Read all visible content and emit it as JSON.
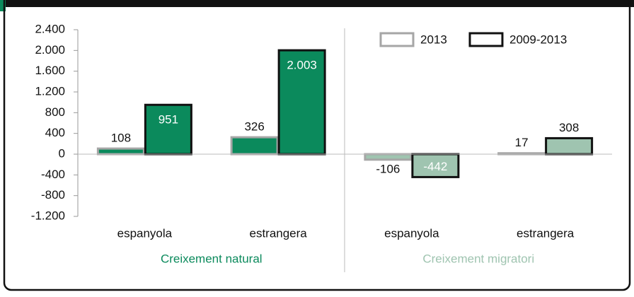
{
  "chart_data": {
    "type": "bar",
    "categories": [
      "espanyola",
      "estrangera",
      "espanyola",
      "estrangera"
    ],
    "groups": [
      {
        "label": "Creixement natural",
        "color": "#0b8a5c"
      },
      {
        "label": "Creixement migratori",
        "color": "#9fc4b0"
      }
    ],
    "series": [
      {
        "name": "2013",
        "color": "#a6a6a6",
        "values": [
          108,
          326,
          -106,
          17
        ]
      },
      {
        "name": "2009-2013",
        "color": "#111111",
        "values": [
          951,
          2003,
          -442,
          308
        ],
        "value_labels": [
          "951",
          "2.003",
          "-442",
          "308"
        ]
      }
    ],
    "ylim": [
      -1200,
      2400
    ],
    "yticks": [
      {
        "value": -1200,
        "label": "-1.200"
      },
      -800,
      -400,
      0,
      400,
      800,
      {
        "value": 1200,
        "label": "1.200"
      },
      {
        "value": 1600,
        "label": "1.600"
      },
      {
        "value": 2000,
        "label": "2.000"
      },
      {
        "value": 2400,
        "label": "2.400"
      }
    ],
    "legend": "top-right"
  }
}
